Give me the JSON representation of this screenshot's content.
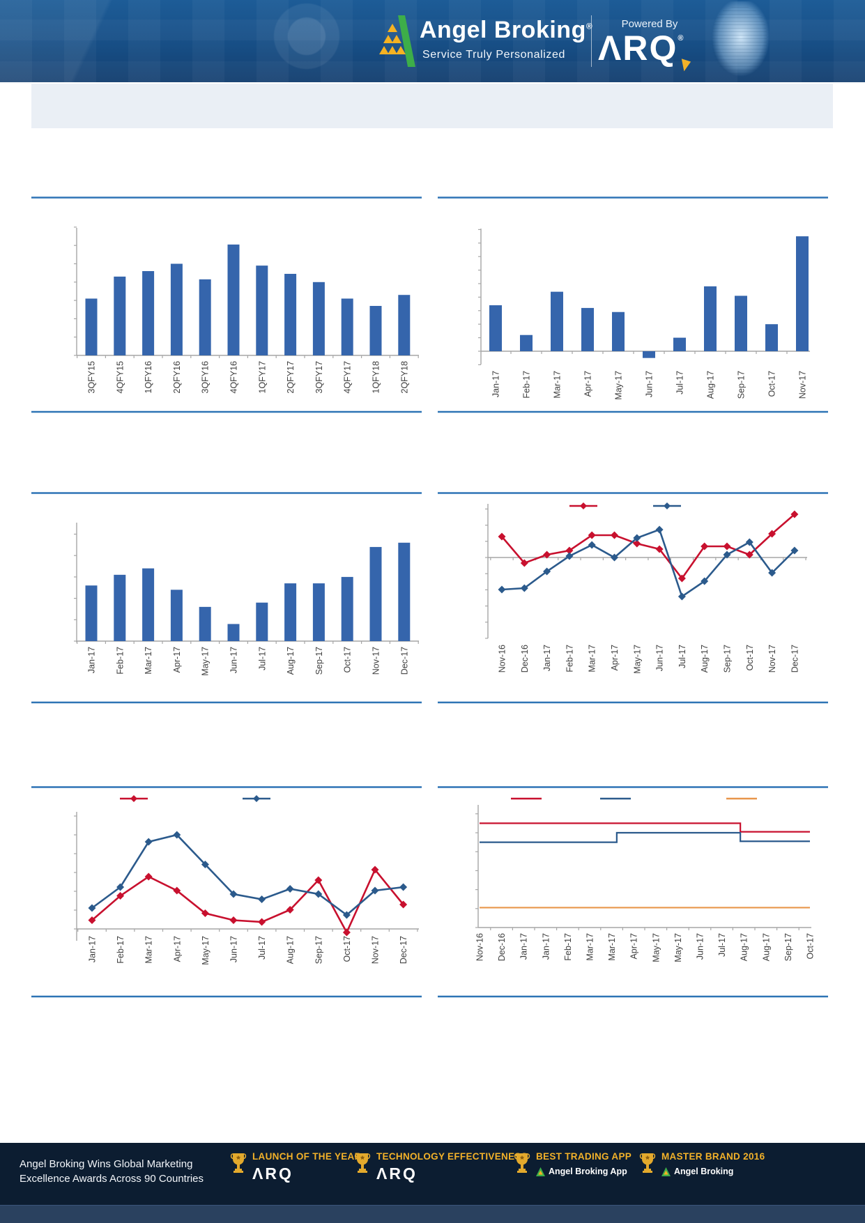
{
  "header": {
    "brand": "Angel Broking",
    "brand_mark": "®",
    "tagline": "Service Truly Personalized",
    "powered_by": "Powered By",
    "arq_logo": "ΛRQ",
    "arq_mark": "®"
  },
  "banner": {
    "text": ""
  },
  "colors": {
    "divider_blue": "#2E74B5",
    "axis_gray": "#A6A6A6",
    "bar_blue": "#3565AC",
    "series_red": "#C8102E",
    "series_dark_blue": "#2B5A8C",
    "series_orange": "#E8964B",
    "label_text": "#404040",
    "footer_gold": "#F3B229",
    "logo_green": "#3DAE49",
    "logo_yellow": "#F4B223"
  },
  "chart_data": [
    {
      "type": "bar",
      "categories": [
        "3QFY15",
        "4QFY15",
        "1QFY16",
        "2QFY16",
        "3QFY16",
        "4QFY16",
        "1QFY17",
        "2QFY17",
        "3QFY17",
        "4QFY17",
        "1QFY18",
        "2QFY18"
      ],
      "values": [
        3.1,
        4.3,
        4.6,
        5.0,
        4.15,
        6.05,
        4.9,
        4.45,
        4.0,
        3.1,
        2.7,
        3.3
      ],
      "bar_color": "#3565AC",
      "grid": false,
      "y_axis_tick_labels": [],
      "legend_position": "none"
    },
    {
      "type": "bar",
      "categories": [
        "Jan-17",
        "Feb-17",
        "Mar-17",
        "Apr-17",
        "May-17",
        "Jun-17",
        "Jul-17",
        "Aug-17",
        "Sep-17",
        "Oct-17",
        "Nov-17"
      ],
      "values": [
        3.4,
        1.2,
        4.4,
        3.2,
        2.9,
        -0.5,
        1.0,
        4.8,
        4.1,
        2.0,
        8.5
      ],
      "bar_color": "#3565AC",
      "grid": false,
      "y_axis_tick_labels": [],
      "legend_position": "none"
    },
    {
      "type": "bar",
      "categories": [
        "Jan-17",
        "Feb-17",
        "Mar-17",
        "Apr-17",
        "May-17",
        "Jun-17",
        "Jul-17",
        "Aug-17",
        "Sep-17",
        "Oct-17",
        "Nov-17",
        "Dec-17"
      ],
      "values": [
        2.6,
        3.1,
        3.4,
        2.4,
        1.6,
        0.8,
        1.8,
        2.7,
        2.7,
        3.0,
        4.4,
        4.6
      ],
      "bar_color": "#3565AC",
      "grid": false,
      "y_axis_tick_labels": [],
      "legend_position": "none"
    },
    {
      "type": "line",
      "categories": [
        "Nov-16",
        "Dec-16",
        "Jan-17",
        "Feb-17",
        "Mar-17",
        "Apr-17",
        "May-17",
        "Jun-17",
        "Jul-17",
        "Aug-17",
        "Sep-17",
        "Oct-17",
        "Nov-17",
        "Dec-17"
      ],
      "series": [
        {
          "name": "red-series",
          "color": "#C8102E",
          "values": [
            1.5,
            -0.4,
            0.2,
            0.5,
            1.6,
            1.6,
            1.0,
            0.6,
            -1.5,
            0.8,
            0.8,
            0.2,
            1.7,
            3.1
          ]
        },
        {
          "name": "blue-series",
          "color": "#2B5A8C",
          "values": [
            -2.3,
            -2.2,
            -1.0,
            0.1,
            0.9,
            0.0,
            1.4,
            2.0,
            -2.8,
            -1.7,
            0.2,
            1.1,
            -1.1,
            0.5
          ]
        }
      ],
      "legend_labels": [
        "",
        ""
      ],
      "legend_position": "top",
      "zero_line": true,
      "marker": "diamond"
    },
    {
      "type": "line",
      "categories": [
        "Jan-17",
        "Feb-17",
        "Mar-17",
        "Apr-17",
        "May-17",
        "Jun-17",
        "Jul-17",
        "Aug-17",
        "Sep-17",
        "Oct-17",
        "Nov-17",
        "Dec-17"
      ],
      "series": [
        {
          "name": "red-series",
          "color": "#C8102E",
          "values": [
            0.5,
            1.9,
            3.0,
            2.2,
            0.9,
            0.5,
            0.4,
            1.1,
            2.8,
            -0.2,
            3.4,
            1.4
          ]
        },
        {
          "name": "blue-series",
          "color": "#2B5A8C",
          "values": [
            1.2,
            2.4,
            5.0,
            5.4,
            3.7,
            2.0,
            1.7,
            2.3,
            2.0,
            0.8,
            2.2,
            2.4
          ]
        }
      ],
      "legend_labels": [
        "",
        ""
      ],
      "legend_position": "top",
      "zero_line": false,
      "marker": "diamond"
    },
    {
      "type": "step-line",
      "categories": [
        "Nov-16",
        "Dec-16",
        "Jan-17",
        "Jan-17",
        "Feb-17",
        "Mar-17",
        "Mar-17",
        "Apr-17",
        "May-17",
        "May-17",
        "Jun-17",
        "Jul-17",
        "Aug-17",
        "Aug-17",
        "Sep-17",
        "Oct-17"
      ],
      "series": [
        {
          "name": "red-series",
          "color": "#C8102E",
          "segments": [
            {
              "from": 0,
              "to": 11.84,
              "level": 5.5
            },
            {
              "from": 11.84,
              "to": 15,
              "level": 5.05
            }
          ]
        },
        {
          "name": "blue-series",
          "color": "#2B5A8C",
          "segments": [
            {
              "from": 0,
              "to": 6.23,
              "level": 4.5
            },
            {
              "from": 6.23,
              "to": 11.84,
              "level": 5.0
            },
            {
              "from": 11.84,
              "to": 15,
              "level": 4.55
            }
          ]
        },
        {
          "name": "orange-series",
          "color": "#E8964B",
          "segments": [
            {
              "from": 0,
              "to": 15,
              "level": 1.05
            }
          ]
        }
      ],
      "legend_labels": [
        "",
        "",
        ""
      ],
      "legend_position": "top"
    }
  ],
  "footer": {
    "headline_line1": "Angel Broking Wins Global Marketing",
    "headline_line2": "Excellence Awards Across 90 Countries",
    "awards": [
      {
        "title": "LAUNCH OF THE YEAR",
        "subtitle": "ΛRQ",
        "logo": "arq"
      },
      {
        "title": "TECHNOLOGY EFFECTIVENESS",
        "subtitle": "ΛRQ",
        "logo": "arq"
      },
      {
        "title": "BEST TRADING APP",
        "subtitle": "Angel Broking App",
        "logo": "angel"
      },
      {
        "title": "MASTER BRAND 2016",
        "subtitle": "Angel Broking",
        "logo": "angel"
      }
    ]
  }
}
